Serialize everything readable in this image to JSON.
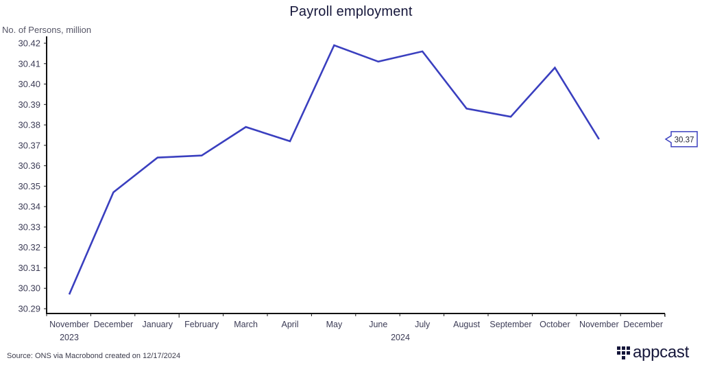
{
  "chart_data": {
    "type": "line",
    "title": "Payroll employment",
    "xlabel": "",
    "ylabel": "No. of Persons, million",
    "ylim": [
      30.288,
      30.425
    ],
    "yticks": [
      "30.42",
      "30.41",
      "30.40",
      "30.39",
      "30.38",
      "30.37",
      "30.36",
      "30.35",
      "30.34",
      "30.33",
      "30.32",
      "30.31",
      "30.30",
      "30.29"
    ],
    "categories": [
      "November",
      "December",
      "January",
      "February",
      "March",
      "April",
      "May",
      "June",
      "July",
      "August",
      "September",
      "October",
      "November",
      "December"
    ],
    "year_labels": [
      {
        "label": "2023",
        "index": 0
      },
      {
        "label": "2024",
        "index": 7.5
      }
    ],
    "series": [
      {
        "name": "Payroll employment",
        "color": "#3a3fbf",
        "values": [
          30.297,
          30.347,
          30.364,
          30.365,
          30.379,
          30.372,
          30.419,
          30.411,
          30.416,
          30.388,
          30.384,
          30.408,
          30.373,
          null
        ]
      }
    ],
    "last_value_label": "30.37",
    "grid": false,
    "legend": "none"
  },
  "header": {
    "title": "Payroll employment"
  },
  "axis": {
    "y_title": "No. of Persons, million"
  },
  "footer": {
    "source": "Source: ONS via Macrobond created on 12/17/2024",
    "brand": "appcast"
  },
  "colors": {
    "line": "#3a3fbf",
    "text": "#15163a",
    "axis": "#111111"
  }
}
